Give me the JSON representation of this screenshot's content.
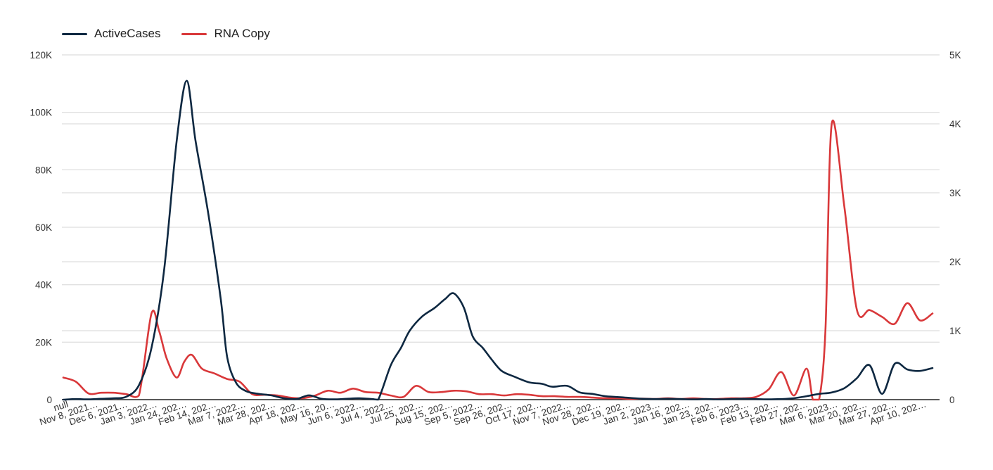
{
  "legend": [
    {
      "label": "ActiveCases",
      "color": "#0e2841"
    },
    {
      "label": "RNA Copy",
      "color": "#d9383a"
    }
  ],
  "chart_data": {
    "type": "line",
    "grid": true,
    "legend_position": "top-left",
    "y_left": {
      "ticks": [
        0,
        20000,
        40000,
        60000,
        80000,
        100000,
        120000
      ],
      "tick_labels": [
        "0",
        "20K",
        "40K",
        "60K",
        "80K",
        "100K",
        "120K"
      ],
      "ylim": [
        0,
        120000
      ]
    },
    "y_right": {
      "ticks": [
        0,
        1000,
        2000,
        3000,
        4000,
        5000
      ],
      "tick_labels": [
        "0",
        "1K",
        "2K",
        "3K",
        "4K",
        "5K"
      ],
      "ylim": [
        0,
        5000
      ]
    },
    "x_tick_labels": [
      "null",
      "Nov 8, 2021…",
      "Dec 6, 2021…",
      "Jan 3, 2022…",
      "Jan 24, 202…",
      "Feb 14, 202…",
      "Mar 7, 2022…",
      "Mar 28, 202…",
      "Apr 18, 202…",
      "May 16, 20…",
      "Jun 6, 2022…",
      "Jul 4, 2022…",
      "Jul 25, 202…",
      "Aug 15, 202…",
      "Sep 5, 2022…",
      "Sep 26, 202…",
      "Oct 17, 202…",
      "Nov 7, 2022…",
      "Nov 28, 202…",
      "Dec 19, 202…",
      "Jan 2, 2023…",
      "Jan 16, 202…",
      "Jan 23, 202…",
      "Feb 6, 2023…",
      "Feb 13, 202…",
      "Feb 27, 202…",
      "Mar 6, 2023…",
      "Mar 20, 202…",
      "Mar 27, 202…",
      "Apr 10, 202…"
    ],
    "series": [
      {
        "name": "ActiveCases",
        "axis": "left",
        "color": "#0e2841",
        "points": [
          [
            0,
            0
          ],
          [
            1,
            200
          ],
          [
            2,
            100
          ],
          [
            3,
            300
          ],
          [
            4,
            500
          ],
          [
            5,
            1000
          ],
          [
            6,
            5000
          ],
          [
            7,
            18000
          ],
          [
            8,
            45000
          ],
          [
            9,
            90000
          ],
          [
            9.8,
            111000
          ],
          [
            10.5,
            90000
          ],
          [
            11.5,
            65000
          ],
          [
            12.5,
            35000
          ],
          [
            13,
            15000
          ],
          [
            13.7,
            6000
          ],
          [
            14.5,
            3000
          ],
          [
            15.5,
            2000
          ],
          [
            16.5,
            1500
          ],
          [
            17.5,
            500
          ],
          [
            18.5,
            200
          ],
          [
            19.5,
            1500
          ],
          [
            20.5,
            300
          ],
          [
            21.5,
            100
          ],
          [
            22.5,
            300
          ],
          [
            23.5,
            500
          ],
          [
            24.5,
            200
          ],
          [
            25,
            0
          ],
          [
            26,
            12000
          ],
          [
            26.8,
            18000
          ],
          [
            27.5,
            24000
          ],
          [
            28.5,
            29000
          ],
          [
            29.5,
            32000
          ],
          [
            30.3,
            35000
          ],
          [
            31,
            37000
          ],
          [
            31.8,
            32000
          ],
          [
            32.5,
            22000
          ],
          [
            33.3,
            18000
          ],
          [
            34,
            14000
          ],
          [
            34.8,
            10000
          ],
          [
            35.8,
            8000
          ],
          [
            37,
            6000
          ],
          [
            38,
            5500
          ],
          [
            38.8,
            4500
          ],
          [
            40,
            4800
          ],
          [
            41,
            2500
          ],
          [
            42,
            2000
          ],
          [
            43,
            1200
          ],
          [
            44,
            900
          ],
          [
            45,
            600
          ],
          [
            46,
            300
          ],
          [
            47,
            200
          ],
          [
            48,
            300
          ],
          [
            49,
            200
          ],
          [
            50,
            100
          ],
          [
            51,
            200
          ],
          [
            52,
            100
          ],
          [
            53,
            200
          ],
          [
            54,
            300
          ],
          [
            55,
            200
          ],
          [
            56,
            100
          ],
          [
            57,
            200
          ],
          [
            58,
            500
          ],
          [
            59,
            1200
          ],
          [
            60,
            2000
          ],
          [
            61,
            2500
          ],
          [
            62,
            4000
          ],
          [
            63,
            7500
          ],
          [
            64,
            12000
          ],
          [
            65,
            2000
          ],
          [
            66,
            12500
          ],
          [
            67,
            10500
          ],
          [
            68,
            10000
          ],
          [
            69,
            11000
          ]
        ]
      },
      {
        "name": "RNA Copy",
        "axis": "right",
        "color": "#d9383a",
        "points": [
          [
            0,
            320
          ],
          [
            1,
            260
          ],
          [
            2,
            90
          ],
          [
            3,
            100
          ],
          [
            4,
            100
          ],
          [
            5,
            80
          ],
          [
            6,
            60
          ],
          [
            7,
            1250
          ],
          [
            7.6,
            1000
          ],
          [
            8.2,
            600
          ],
          [
            9,
            320
          ],
          [
            9.6,
            550
          ],
          [
            10.2,
            650
          ],
          [
            11,
            450
          ],
          [
            12,
            380
          ],
          [
            13,
            300
          ],
          [
            14,
            260
          ],
          [
            15,
            80
          ],
          [
            16,
            70
          ],
          [
            17,
            60
          ],
          [
            18,
            30
          ],
          [
            19,
            20
          ],
          [
            20,
            60
          ],
          [
            21,
            130
          ],
          [
            22,
            100
          ],
          [
            23,
            160
          ],
          [
            24,
            110
          ],
          [
            25,
            100
          ],
          [
            26,
            60
          ],
          [
            27,
            40
          ],
          [
            28,
            200
          ],
          [
            29,
            110
          ],
          [
            30,
            110
          ],
          [
            31,
            130
          ],
          [
            32,
            120
          ],
          [
            33,
            80
          ],
          [
            34,
            80
          ],
          [
            35,
            60
          ],
          [
            36,
            80
          ],
          [
            37,
            70
          ],
          [
            38,
            50
          ],
          [
            39,
            50
          ],
          [
            40,
            40
          ],
          [
            41,
            40
          ],
          [
            42,
            30
          ],
          [
            43,
            20
          ],
          [
            44,
            20
          ],
          [
            45,
            10
          ],
          [
            46,
            15
          ],
          [
            47,
            10
          ],
          [
            48,
            20
          ],
          [
            49,
            10
          ],
          [
            50,
            20
          ],
          [
            51,
            10
          ],
          [
            52,
            10
          ],
          [
            53,
            20
          ],
          [
            54,
            20
          ],
          [
            55,
            40
          ],
          [
            56,
            150
          ],
          [
            57,
            400
          ],
          [
            58,
            60
          ],
          [
            59,
            450
          ],
          [
            59.5,
            0
          ],
          [
            60,
            0
          ],
          [
            60.5,
            1000
          ],
          [
            61,
            4000
          ],
          [
            62,
            2800
          ],
          [
            63,
            1300
          ],
          [
            64,
            1300
          ],
          [
            65,
            1200
          ],
          [
            66,
            1100
          ],
          [
            67,
            1400
          ],
          [
            68,
            1150
          ],
          [
            69,
            1250
          ]
        ]
      }
    ]
  }
}
